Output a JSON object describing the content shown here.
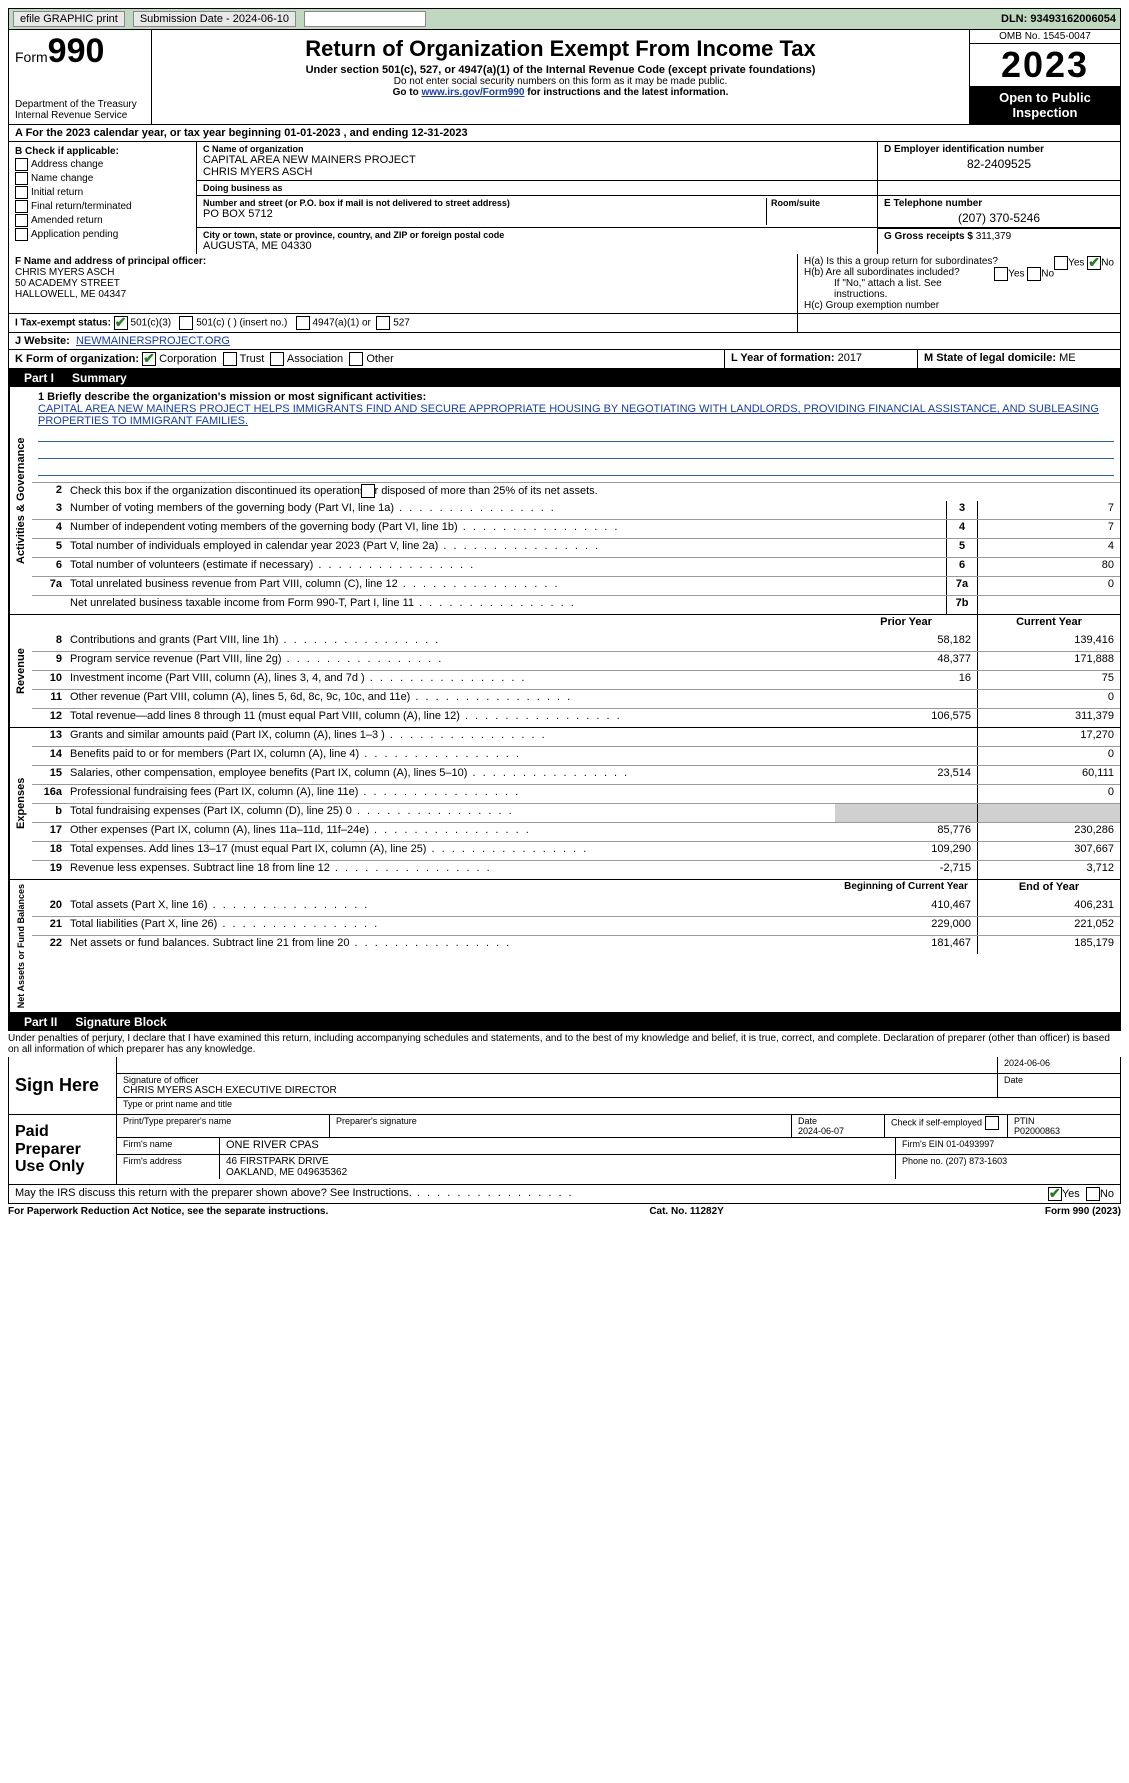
{
  "topbar": {
    "efile": "efile GRAPHIC print",
    "submission": "Submission Date - 2024-06-10",
    "dln": "DLN: 93493162006054"
  },
  "header": {
    "form_label": "Form",
    "form_num": "990",
    "dept": "Department of the Treasury Internal Revenue Service",
    "title": "Return of Organization Exempt From Income Tax",
    "sub": "Under section 501(c), 527, or 4947(a)(1) of the Internal Revenue Code (except private foundations)",
    "note1": "Do not enter social security numbers on this form as it may be made public.",
    "note2_pre": "Go to ",
    "note2_link": "www.irs.gov/Form990",
    "note2_post": " for instructions and the latest information.",
    "omb": "OMB No. 1545-0047",
    "year": "2023",
    "open_pub": "Open to Public Inspection"
  },
  "section_a": "A  For the 2023 calendar year, or tax year beginning 01-01-2023   , and ending 12-31-2023",
  "col_b": {
    "hdr": "B Check if applicable:",
    "items": [
      "Address change",
      "Name change",
      "Initial return",
      "Final return/terminated",
      "Amended return",
      "Application pending"
    ]
  },
  "col_c": {
    "name_lbl": "C Name of organization",
    "name": "CAPITAL AREA NEW MAINERS PROJECT\nCHRIS MYERS ASCH",
    "dba_lbl": "Doing business as",
    "dba": "",
    "addr_lbl": "Number and street (or P.O. box if mail is not delivered to street address)",
    "addr": "PO BOX 5712",
    "room_lbl": "Room/suite",
    "city_lbl": "City or town, state or province, country, and ZIP or foreign postal code",
    "city": "AUGUSTA, ME  04330"
  },
  "col_d": {
    "ein_lbl": "D Employer identification number",
    "ein": "82-2409525",
    "tel_lbl": "E Telephone number",
    "tel": "(207) 370-5246",
    "gross_lbl": "G Gross receipts $",
    "gross": "311,379"
  },
  "col_f": {
    "lbl": "F Name and address of principal officer:",
    "line1": "CHRIS MYERS ASCH",
    "line2": "50 ACADEMY STREET",
    "line3": "HALLOWELL, ME  04347"
  },
  "col_h": {
    "a": "H(a)  Is this a group return for subordinates?",
    "b": "H(b)  Are all subordinates included?",
    "b_note": "If \"No,\" attach a list. See instructions.",
    "c": "H(c)  Group exemption number",
    "yes": "Yes",
    "no": "No"
  },
  "row_i": {
    "lbl": "I    Tax-exempt status:",
    "o1": "501(c)(3)",
    "o2": "501(c) (  ) (insert no.)",
    "o3": "4947(a)(1) or",
    "o4": "527"
  },
  "row_j": {
    "lbl": "J    Website:",
    "val": "NEWMAINERSPROJECT.ORG"
  },
  "row_k": {
    "lbl": "K Form of organization:",
    "o1": "Corporation",
    "o2": "Trust",
    "o3": "Association",
    "o4": "Other"
  },
  "row_l": {
    "lbl": "L Year of formation:",
    "val": "2017"
  },
  "row_m": {
    "lbl": "M State of legal domicile:",
    "val": "ME"
  },
  "part1": {
    "num": "Part I",
    "title": "Summary"
  },
  "mission": {
    "lbl": "1   Briefly describe the organization's mission or most significant activities:",
    "text": "CAPITAL AREA NEW MAINERS PROJECT HELPS IMMIGRANTS FIND AND SECURE APPROPRIATE HOUSING BY NEGOTIATING WITH LANDLORDS, PROVIDING FINANCIAL ASSISTANCE, AND SUBLEASING PROPERTIES TO IMMIGRANT FAMILIES."
  },
  "line2": "Check this box      if the organization discontinued its operations or disposed of more than 25% of its net assets.",
  "gov_rows": [
    {
      "n": "3",
      "d": "Number of voting members of the governing body (Part VI, line 1a)",
      "c": "3",
      "v": "7"
    },
    {
      "n": "4",
      "d": "Number of independent voting members of the governing body (Part VI, line 1b)",
      "c": "4",
      "v": "7"
    },
    {
      "n": "5",
      "d": "Total number of individuals employed in calendar year 2023 (Part V, line 2a)",
      "c": "5",
      "v": "4"
    },
    {
      "n": "6",
      "d": "Total number of volunteers (estimate if necessary)",
      "c": "6",
      "v": "80"
    },
    {
      "n": "7a",
      "d": "Total unrelated business revenue from Part VIII, column (C), line 12",
      "c": "7a",
      "v": "0"
    },
    {
      "n": "",
      "d": "Net unrelated business taxable income from Form 990-T, Part I, line 11",
      "c": "7b",
      "v": ""
    }
  ],
  "py_hdr": "Prior Year",
  "cy_hdr": "Current Year",
  "rev_rows": [
    {
      "n": "8",
      "d": "Contributions and grants (Part VIII, line 1h)",
      "p": "58,182",
      "c": "139,416"
    },
    {
      "n": "9",
      "d": "Program service revenue (Part VIII, line 2g)",
      "p": "48,377",
      "c": "171,888"
    },
    {
      "n": "10",
      "d": "Investment income (Part VIII, column (A), lines 3, 4, and 7d )",
      "p": "16",
      "c": "75"
    },
    {
      "n": "11",
      "d": "Other revenue (Part VIII, column (A), lines 5, 6d, 8c, 9c, 10c, and 11e)",
      "p": "",
      "c": "0"
    },
    {
      "n": "12",
      "d": "Total revenue—add lines 8 through 11 (must equal Part VIII, column (A), line 12)",
      "p": "106,575",
      "c": "311,379"
    }
  ],
  "exp_rows": [
    {
      "n": "13",
      "d": "Grants and similar amounts paid (Part IX, column (A), lines 1–3 )",
      "p": "",
      "c": "17,270"
    },
    {
      "n": "14",
      "d": "Benefits paid to or for members (Part IX, column (A), line 4)",
      "p": "",
      "c": "0"
    },
    {
      "n": "15",
      "d": "Salaries, other compensation, employee benefits (Part IX, column (A), lines 5–10)",
      "p": "23,514",
      "c": "60,111"
    },
    {
      "n": "16a",
      "d": "Professional fundraising fees (Part IX, column (A), line 11e)",
      "p": "",
      "c": "0"
    },
    {
      "n": "b",
      "d": "Total fundraising expenses (Part IX, column (D), line 25) 0",
      "p": "GREY",
      "c": "GREY"
    },
    {
      "n": "17",
      "d": "Other expenses (Part IX, column (A), lines 11a–11d, 11f–24e)",
      "p": "85,776",
      "c": "230,286"
    },
    {
      "n": "18",
      "d": "Total expenses. Add lines 13–17 (must equal Part IX, column (A), line 25)",
      "p": "109,290",
      "c": "307,667"
    },
    {
      "n": "19",
      "d": "Revenue less expenses. Subtract line 18 from line 12",
      "p": "-2,715",
      "c": "3,712"
    }
  ],
  "na_hdr_p": "Beginning of Current Year",
  "na_hdr_c": "End of Year",
  "na_rows": [
    {
      "n": "20",
      "d": "Total assets (Part X, line 16)",
      "p": "410,467",
      "c": "406,231"
    },
    {
      "n": "21",
      "d": "Total liabilities (Part X, line 26)",
      "p": "229,000",
      "c": "221,052"
    },
    {
      "n": "22",
      "d": "Net assets or fund balances. Subtract line 21 from line 20",
      "p": "181,467",
      "c": "185,179"
    }
  ],
  "side_labels": {
    "gov": "Activities & Governance",
    "rev": "Revenue",
    "exp": "Expenses",
    "na": "Net Assets or Fund Balances"
  },
  "part2": {
    "num": "Part II",
    "title": "Signature Block"
  },
  "perjury": "Under penalties of perjury, I declare that I have examined this return, including accompanying schedules and statements, and to the best of my knowledge and belief, it is true, correct, and complete. Declaration of preparer (other than officer) is based on all information of which preparer has any knowledge.",
  "sign_here": "Sign Here",
  "sig": {
    "date": "2024-06-06",
    "officer_lbl": "Signature of officer",
    "officer": "CHRIS MYERS ASCH  EXECUTIVE DIRECTOR",
    "type_lbl": "Type or print name and title",
    "date_lbl": "Date"
  },
  "paid": {
    "label": "Paid Preparer Use Only",
    "name_lbl": "Print/Type preparer's name",
    "sig_lbl": "Preparer's signature",
    "date_lbl": "Date",
    "date": "2024-06-07",
    "check_lbl": "Check         if self-employed",
    "ptin_lbl": "PTIN",
    "ptin": "P02000863",
    "firm_lbl": "Firm's name",
    "firm": "ONE RIVER CPAS",
    "fein_lbl": "Firm's EIN",
    "fein": "01-0493997",
    "addr_lbl": "Firm's address",
    "addr1": "46 FIRSTPARK DRIVE",
    "addr2": "OAKLAND, ME  049635362",
    "phone_lbl": "Phone no.",
    "phone": "(207) 873-1603"
  },
  "discuss": "May the IRS discuss this return with the preparer shown above? See Instructions.",
  "footer": {
    "left": "For Paperwork Reduction Act Notice, see the separate instructions.",
    "mid": "Cat. No. 11282Y",
    "right": "Form 990 (2023)"
  }
}
